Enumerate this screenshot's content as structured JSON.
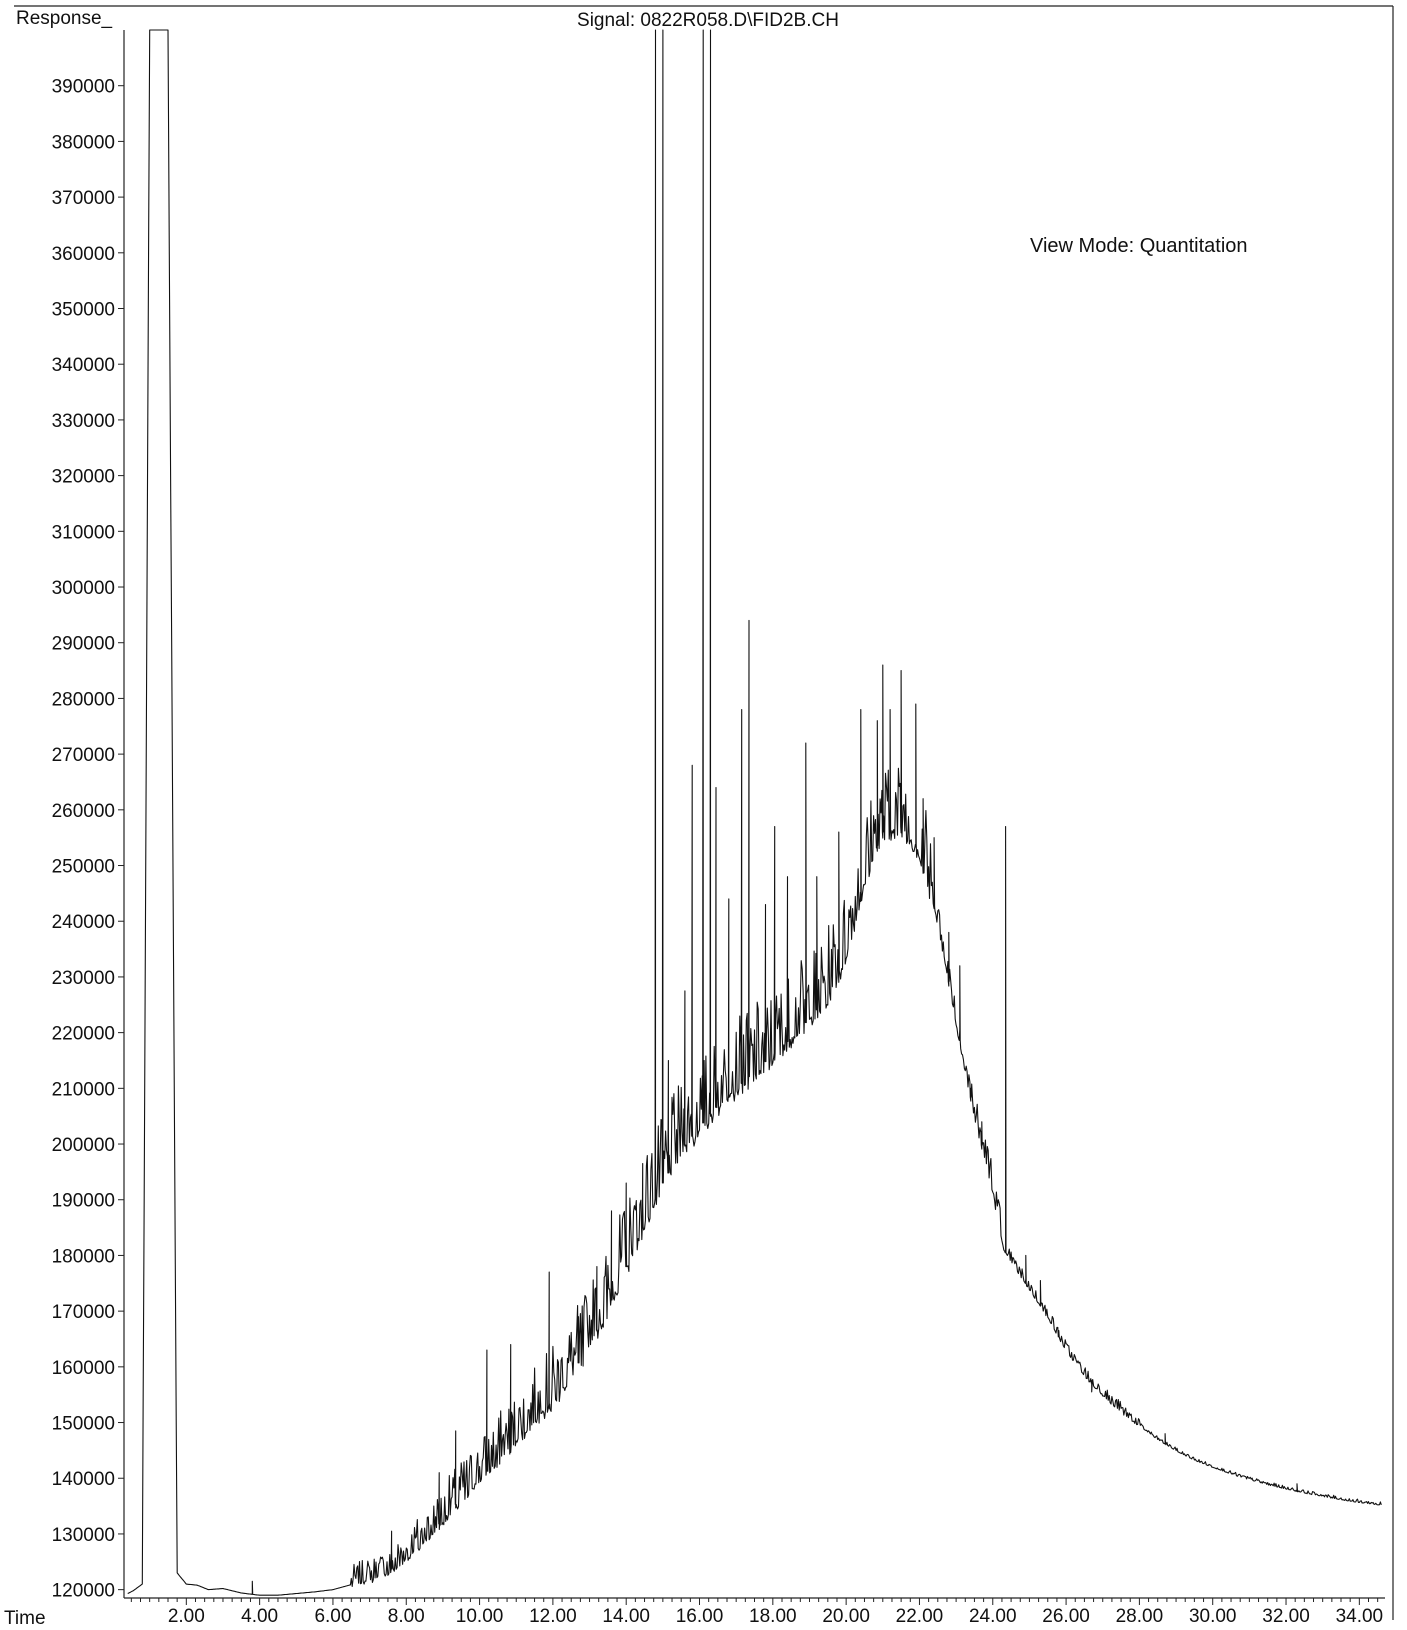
{
  "header": {
    "ylabel": "Response_",
    "signal": "Signal: 0822R058.D\\FID2B.CH",
    "view_mode": "View Mode: Quantitation",
    "xlabel": "Time"
  },
  "chart_data": {
    "type": "line",
    "title": "Signal: 0822R058.D\\FID2B.CH",
    "xlabel": "Time",
    "ylabel": "Response_",
    "xlim": [
      0.3,
      34.7
    ],
    "ylim": [
      118500,
      400000
    ],
    "grid": false,
    "legend": "none",
    "xticks": [
      {
        "value": 2,
        "label": "2.00"
      },
      {
        "value": 4,
        "label": "4.00"
      },
      {
        "value": 6,
        "label": "6.00"
      },
      {
        "value": 8,
        "label": "8.00"
      },
      {
        "value": 10,
        "label": "10.00"
      },
      {
        "value": 12,
        "label": "12.00"
      },
      {
        "value": 14,
        "label": "14.00"
      },
      {
        "value": 16,
        "label": "16.00"
      },
      {
        "value": 18,
        "label": "18.00"
      },
      {
        "value": 20,
        "label": "20.00"
      },
      {
        "value": 22,
        "label": "22.00"
      },
      {
        "value": 24,
        "label": "24.00"
      },
      {
        "value": 26,
        "label": "26.00"
      },
      {
        "value": 28,
        "label": "28.00"
      },
      {
        "value": 30,
        "label": "30.00"
      },
      {
        "value": 32,
        "label": "32.00"
      },
      {
        "value": 34,
        "label": "34.00"
      }
    ],
    "yticks": [
      {
        "value": 120000,
        "label": "120000"
      },
      {
        "value": 130000,
        "label": "130000"
      },
      {
        "value": 140000,
        "label": "140000"
      },
      {
        "value": 150000,
        "label": "150000"
      },
      {
        "value": 160000,
        "label": "160000"
      },
      {
        "value": 170000,
        "label": "170000"
      },
      {
        "value": 180000,
        "label": "180000"
      },
      {
        "value": 190000,
        "label": "190000"
      },
      {
        "value": 200000,
        "label": "200000"
      },
      {
        "value": 210000,
        "label": "210000"
      },
      {
        "value": 220000,
        "label": "220000"
      },
      {
        "value": 230000,
        "label": "230000"
      },
      {
        "value": 240000,
        "label": "240000"
      },
      {
        "value": 250000,
        "label": "250000"
      },
      {
        "value": 260000,
        "label": "260000"
      },
      {
        "value": 270000,
        "label": "270000"
      },
      {
        "value": 280000,
        "label": "280000"
      },
      {
        "value": 290000,
        "label": "290000"
      },
      {
        "value": 300000,
        "label": "300000"
      },
      {
        "value": 310000,
        "label": "310000"
      },
      {
        "value": 320000,
        "label": "320000"
      },
      {
        "value": 330000,
        "label": "330000"
      },
      {
        "value": 340000,
        "label": "340000"
      },
      {
        "value": 350000,
        "label": "350000"
      },
      {
        "value": 360000,
        "label": "360000"
      },
      {
        "value": 370000,
        "label": "370000"
      },
      {
        "value": 380000,
        "label": "380000"
      },
      {
        "value": 390000,
        "label": "390000"
      }
    ],
    "series": [
      {
        "baseline": [
          [
            0.4,
            119300
          ],
          [
            0.55,
            119800
          ],
          [
            0.8,
            121000
          ],
          [
            1.0,
            400000
          ],
          [
            1.5,
            400000
          ],
          [
            1.75,
            123000
          ],
          [
            2.0,
            121000
          ],
          [
            2.3,
            120800
          ],
          [
            2.6,
            120000
          ],
          [
            3.0,
            120200
          ],
          [
            3.5,
            119400
          ],
          [
            4.0,
            119000
          ],
          [
            4.5,
            119000
          ],
          [
            5.0,
            119300
          ],
          [
            5.5,
            119600
          ],
          [
            6.0,
            120000
          ],
          [
            6.5,
            120900
          ],
          [
            7.0,
            121800
          ],
          [
            7.5,
            123200
          ],
          [
            8.0,
            125800
          ],
          [
            8.5,
            129000
          ],
          [
            9.0,
            132500
          ],
          [
            9.5,
            136500
          ],
          [
            10.0,
            140000
          ],
          [
            10.5,
            143500
          ],
          [
            11.0,
            147000
          ],
          [
            11.5,
            150500
          ],
          [
            12.0,
            154000
          ],
          [
            12.5,
            158500
          ],
          [
            13.0,
            164000
          ],
          [
            13.5,
            170500
          ],
          [
            14.0,
            178000
          ],
          [
            14.5,
            186000
          ],
          [
            15.0,
            193000
          ],
          [
            15.5,
            199000
          ],
          [
            16.0,
            203000
          ],
          [
            16.5,
            207000
          ],
          [
            17.0,
            210000
          ],
          [
            17.5,
            213000
          ],
          [
            18.0,
            216000
          ],
          [
            18.5,
            219000
          ],
          [
            19.0,
            222500
          ],
          [
            19.5,
            226500
          ],
          [
            20.0,
            234000
          ],
          [
            20.5,
            248000
          ],
          [
            21.0,
            256000
          ],
          [
            21.5,
            257000
          ],
          [
            22.0,
            253000
          ],
          [
            22.5,
            240000
          ],
          [
            23.0,
            222000
          ],
          [
            23.5,
            205000
          ],
          [
            24.0,
            192000
          ],
          [
            24.15,
            186000
          ],
          [
            24.3,
            181000
          ],
          [
            24.6,
            178000
          ],
          [
            25.0,
            174000
          ],
          [
            25.5,
            169000
          ],
          [
            26.0,
            163000
          ],
          [
            26.5,
            158500
          ],
          [
            27.0,
            155000
          ],
          [
            27.5,
            152000
          ],
          [
            28.0,
            149500
          ],
          [
            28.5,
            147000
          ],
          [
            29.0,
            145000
          ],
          [
            29.5,
            143300
          ],
          [
            30.0,
            142000
          ],
          [
            30.5,
            140800
          ],
          [
            31.0,
            139800
          ],
          [
            31.5,
            138900
          ],
          [
            32.0,
            138100
          ],
          [
            32.5,
            137400
          ],
          [
            33.0,
            136800
          ],
          [
            33.5,
            136200
          ],
          [
            34.0,
            135700
          ],
          [
            34.5,
            135300
          ]
        ],
        "peaks": [
          [
            3.8,
            121500
          ],
          [
            7.6,
            130500
          ],
          [
            8.9,
            141000
          ],
          [
            9.35,
            148500
          ],
          [
            10.2,
            163000
          ],
          [
            10.85,
            164000
          ],
          [
            11.9,
            177000
          ],
          [
            12.7,
            169000
          ],
          [
            13.2,
            178000
          ],
          [
            13.6,
            188000
          ],
          [
            14.0,
            193000
          ],
          [
            14.45,
            196500
          ],
          [
            14.8,
            400000
          ],
          [
            15.0,
            400000
          ],
          [
            15.15,
            215000
          ],
          [
            15.6,
            227500
          ],
          [
            15.8,
            268000
          ],
          [
            16.1,
            400000
          ],
          [
            16.3,
            400000
          ],
          [
            16.45,
            264000
          ],
          [
            16.8,
            244000
          ],
          [
            17.15,
            278000
          ],
          [
            17.35,
            294000
          ],
          [
            17.8,
            243000
          ],
          [
            18.05,
            257000
          ],
          [
            18.4,
            248000
          ],
          [
            18.9,
            272000
          ],
          [
            19.2,
            248000
          ],
          [
            19.8,
            256000
          ],
          [
            20.4,
            278000
          ],
          [
            20.85,
            276000
          ],
          [
            21.0,
            286000
          ],
          [
            21.2,
            278000
          ],
          [
            21.5,
            285000
          ],
          [
            21.9,
            279000
          ],
          [
            22.1,
            262000
          ],
          [
            22.4,
            255000
          ],
          [
            22.8,
            238000
          ],
          [
            23.1,
            232000
          ],
          [
            23.4,
            210000
          ],
          [
            23.7,
            204000
          ],
          [
            24.35,
            257000
          ],
          [
            24.9,
            180000
          ],
          [
            25.3,
            175500
          ],
          [
            25.8,
            166500
          ],
          [
            26.7,
            155500
          ],
          [
            28.7,
            148000
          ],
          [
            32.3,
            139000
          ]
        ]
      }
    ]
  }
}
